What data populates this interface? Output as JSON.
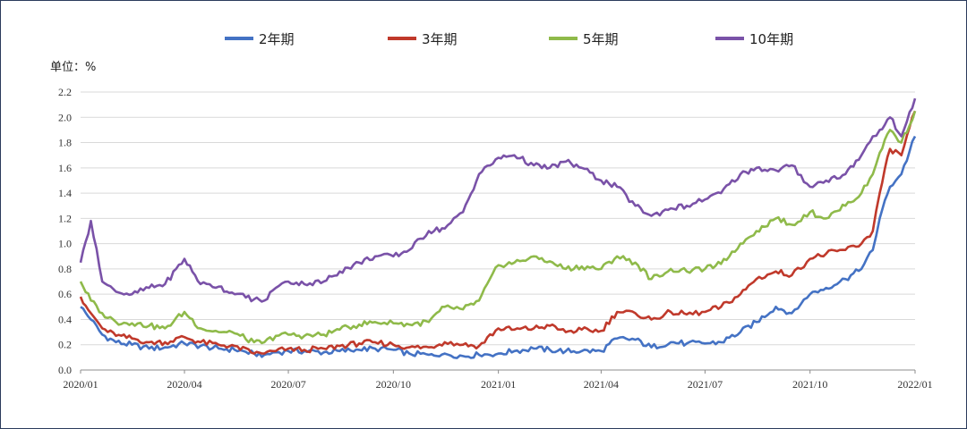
{
  "chart_data": {
    "type": "line",
    "unit_label": "单位：%",
    "x_tick_labels": [
      "2020/01",
      "2020/04",
      "2020/07",
      "2020/10",
      "2021/01",
      "2021/04",
      "2021/07",
      "2021/10",
      "2022/01"
    ],
    "y_tick_labels": [
      "0.0",
      "0.2",
      "0.4",
      "0.6",
      "0.8",
      "1.0",
      "1.2",
      "1.4",
      "1.6",
      "1.8",
      "2.0",
      "2.2"
    ],
    "xlim": [
      "2020-01-01",
      "2022-01-01"
    ],
    "ylim": [
      0,
      2.2
    ],
    "grid": "horizontal",
    "legend_position": "top",
    "x": [
      "2020-01-01",
      "2020-01-10",
      "2020-01-20",
      "2020-02-01",
      "2020-02-15",
      "2020-03-01",
      "2020-03-15",
      "2020-04-01",
      "2020-04-15",
      "2020-05-01",
      "2020-05-15",
      "2020-06-01",
      "2020-06-10",
      "2020-06-20",
      "2020-07-01",
      "2020-07-15",
      "2020-08-01",
      "2020-08-15",
      "2020-09-01",
      "2020-09-15",
      "2020-10-01",
      "2020-10-15",
      "2020-11-01",
      "2020-11-15",
      "2020-12-01",
      "2020-12-15",
      "2021-01-01",
      "2021-01-15",
      "2021-02-01",
      "2021-02-15",
      "2021-03-01",
      "2021-03-15",
      "2021-04-01",
      "2021-04-15",
      "2021-05-01",
      "2021-05-15",
      "2021-06-01",
      "2021-06-15",
      "2021-07-01",
      "2021-07-15",
      "2021-08-01",
      "2021-08-15",
      "2021-09-01",
      "2021-09-15",
      "2021-10-01",
      "2021-10-15",
      "2021-11-01",
      "2021-11-15",
      "2021-11-25",
      "2021-12-01",
      "2021-12-10",
      "2021-12-20",
      "2022-01-01"
    ],
    "series": [
      {
        "name": "2年期",
        "color": "#4472c4",
        "values": [
          0.5,
          0.4,
          0.28,
          0.22,
          0.2,
          0.17,
          0.18,
          0.21,
          0.19,
          0.17,
          0.16,
          0.13,
          0.12,
          0.14,
          0.15,
          0.15,
          0.14,
          0.15,
          0.16,
          0.17,
          0.16,
          0.13,
          0.12,
          0.13,
          0.11,
          0.12,
          0.13,
          0.15,
          0.17,
          0.16,
          0.15,
          0.15,
          0.15,
          0.25,
          0.24,
          0.18,
          0.22,
          0.21,
          0.21,
          0.22,
          0.3,
          0.38,
          0.5,
          0.45,
          0.6,
          0.65,
          0.72,
          0.8,
          0.95,
          1.2,
          1.45,
          1.55,
          1.85
        ]
      },
      {
        "name": "3年期",
        "color": "#c0392b",
        "values": [
          0.58,
          0.45,
          0.33,
          0.27,
          0.25,
          0.22,
          0.22,
          0.26,
          0.22,
          0.2,
          0.19,
          0.13,
          0.13,
          0.15,
          0.17,
          0.16,
          0.17,
          0.19,
          0.21,
          0.22,
          0.2,
          0.18,
          0.18,
          0.22,
          0.2,
          0.19,
          0.33,
          0.32,
          0.33,
          0.35,
          0.3,
          0.32,
          0.31,
          0.46,
          0.45,
          0.4,
          0.46,
          0.44,
          0.46,
          0.5,
          0.6,
          0.72,
          0.78,
          0.75,
          0.88,
          0.92,
          0.95,
          1.0,
          1.1,
          1.4,
          1.75,
          1.7,
          2.05
        ]
      },
      {
        "name": "5年期",
        "color": "#8fba4a",
        "values": [
          0.7,
          0.55,
          0.45,
          0.38,
          0.37,
          0.35,
          0.33,
          0.46,
          0.33,
          0.3,
          0.29,
          0.22,
          0.22,
          0.27,
          0.28,
          0.27,
          0.28,
          0.32,
          0.36,
          0.38,
          0.37,
          0.36,
          0.38,
          0.5,
          0.48,
          0.55,
          0.83,
          0.85,
          0.9,
          0.86,
          0.8,
          0.82,
          0.8,
          0.9,
          0.85,
          0.72,
          0.8,
          0.78,
          0.8,
          0.84,
          1.0,
          1.1,
          1.2,
          1.15,
          1.25,
          1.2,
          1.3,
          1.4,
          1.55,
          1.72,
          1.9,
          1.8,
          2.05
        ]
      },
      {
        "name": "10年期",
        "color": "#7a52a8",
        "values": [
          0.85,
          1.18,
          0.7,
          0.62,
          0.6,
          0.65,
          0.68,
          0.88,
          0.68,
          0.66,
          0.6,
          0.56,
          0.55,
          0.65,
          0.7,
          0.68,
          0.7,
          0.78,
          0.85,
          0.9,
          0.9,
          0.95,
          1.1,
          1.12,
          1.25,
          1.55,
          1.68,
          1.7,
          1.62,
          1.6,
          1.65,
          1.6,
          1.5,
          1.45,
          1.3,
          1.22,
          1.28,
          1.3,
          1.35,
          1.4,
          1.55,
          1.6,
          1.58,
          1.62,
          1.45,
          1.5,
          1.55,
          1.7,
          1.85,
          1.9,
          2.0,
          1.85,
          2.15
        ]
      }
    ]
  }
}
